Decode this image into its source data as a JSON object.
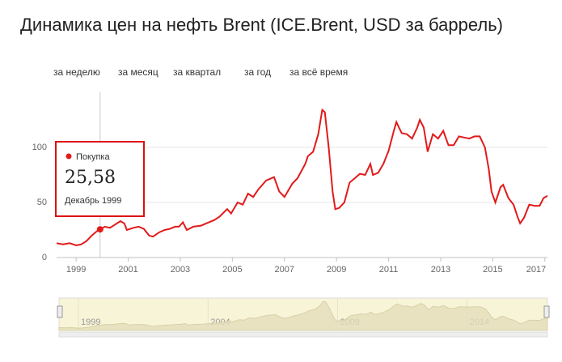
{
  "range_buttons": [
    "за неделю",
    "за месяц",
    "за квартал",
    "за год",
    "за всё время"
  ],
  "chart_data": {
    "type": "line",
    "title": "Динамика цен на нефть Brent (ICE.Brent, USD за баррель)",
    "series": [
      {
        "name": "Покупка",
        "color": "#e21a1a",
        "x": [
          1998.25,
          1998.5,
          1998.75,
          1999.0,
          1999.2,
          1999.4,
          1999.6,
          1999.8,
          1999.92,
          2000.1,
          2000.3,
          2000.5,
          2000.7,
          2000.85,
          2000.95,
          2001.2,
          2001.4,
          2001.6,
          2001.8,
          2001.95,
          2002.2,
          2002.4,
          2002.6,
          2002.8,
          2002.95,
          2003.1,
          2003.25,
          2003.5,
          2003.8,
          2004.0,
          2004.3,
          2004.5,
          2004.8,
          2004.95,
          2005.2,
          2005.4,
          2005.6,
          2005.8,
          2006.0,
          2006.3,
          2006.6,
          2006.8,
          2007.0,
          2007.3,
          2007.5,
          2007.8,
          2007.9,
          2008.1,
          2008.3,
          2008.45,
          2008.55,
          2008.7,
          2008.85,
          2008.95,
          2009.1,
          2009.3,
          2009.5,
          2009.7,
          2009.9,
          2010.1,
          2010.3,
          2010.4,
          2010.6,
          2010.8,
          2011.0,
          2011.2,
          2011.3,
          2011.5,
          2011.7,
          2011.9,
          2012.1,
          2012.2,
          2012.35,
          2012.5,
          2012.7,
          2012.9,
          2013.1,
          2013.3,
          2013.5,
          2013.7,
          2013.9,
          2014.1,
          2014.3,
          2014.5,
          2014.7,
          2014.85,
          2014.95,
          2015.1,
          2015.3,
          2015.4,
          2015.6,
          2015.8,
          2015.95,
          2016.05,
          2016.2,
          2016.4,
          2016.6,
          2016.8,
          2016.95,
          2017.1
        ],
        "values": [
          13,
          12,
          13,
          11,
          12,
          15,
          20,
          24,
          25.58,
          28,
          27,
          30,
          33,
          31,
          25,
          27,
          28,
          26,
          20,
          19,
          23,
          25,
          26,
          28,
          28,
          32,
          25,
          28,
          29,
          31,
          34,
          37,
          44,
          40,
          50,
          48,
          58,
          55,
          62,
          70,
          73,
          60,
          55,
          67,
          72,
          85,
          92,
          96,
          112,
          134,
          132,
          100,
          60,
          44,
          45,
          50,
          68,
          72,
          76,
          75,
          85,
          75,
          77,
          85,
          97,
          115,
          123,
          113,
          112,
          108,
          118,
          125,
          118,
          96,
          112,
          108,
          115,
          102,
          102,
          110,
          109,
          108,
          110,
          110,
          100,
          80,
          60,
          50,
          64,
          66,
          54,
          48,
          37,
          31,
          36,
          48,
          47,
          47,
          54,
          56
        ]
      }
    ],
    "xlim": [
      1998.25,
      2017.1
    ],
    "xticks": [
      1999,
      2001,
      2003,
      2005,
      2007,
      2009,
      2011,
      2013,
      2015,
      2017
    ],
    "ylim": [
      0,
      150
    ],
    "yticks": [
      0,
      50,
      100
    ],
    "grid": true,
    "tooltip": {
      "series_name": "Покупка",
      "x": 1999.92,
      "value": 25.58,
      "value_label": "25,58",
      "date_label": "Декабрь 1999"
    },
    "navigator_xticks": [
      1999,
      2004,
      2009,
      2014
    ]
  }
}
